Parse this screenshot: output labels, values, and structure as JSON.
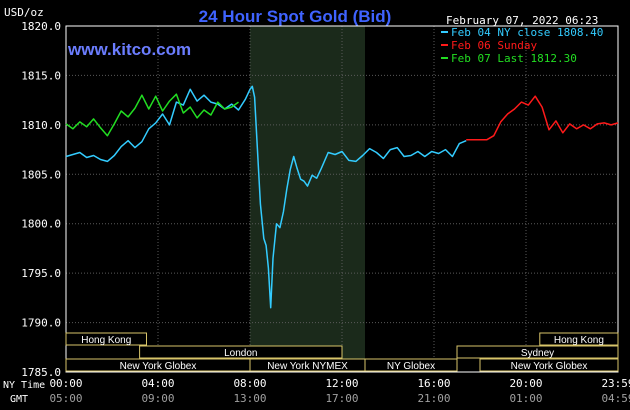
{
  "chart_data": {
    "type": "line",
    "title": "24 Hour Spot Gold (Bid)",
    "ylabel": "USD/oz",
    "website": "www.kitco.com",
    "date_label": "February 07, 2022 06:23",
    "ylim": [
      1785.0,
      1820.0
    ],
    "y_ticks": [
      "1820.0",
      "1815.0",
      "1810.0",
      "1805.0",
      "1800.0",
      "1795.0",
      "1790.0",
      "1785.0"
    ],
    "y_tick_values": [
      1820,
      1815,
      1810,
      1805,
      1800,
      1795,
      1790,
      1785
    ],
    "x_range_hours": [
      0,
      24
    ],
    "x_ticks_ny": [
      "00:00",
      "04:00",
      "08:00",
      "12:00",
      "16:00",
      "20:00",
      "23:59"
    ],
    "x_ticks_gmt": [
      "05:00",
      "09:00",
      "13:00",
      "17:00",
      "21:00",
      "01:00",
      "04:59"
    ],
    "x_tick_hours": [
      0,
      4,
      8,
      12,
      16,
      20,
      24
    ],
    "x_row_label_ny": "NY Time",
    "x_row_label_gmt": "GMT",
    "shaded_period_hours": [
      8.0,
      13.0
    ],
    "grid": true,
    "legend_placement": "top-right",
    "series": [
      {
        "name": "Feb 04 NY close 1808.40",
        "color": "#33ccff",
        "x": [
          0,
          0.3,
          0.6,
          0.9,
          1.2,
          1.5,
          1.8,
          2.1,
          2.4,
          2.7,
          3.0,
          3.3,
          3.6,
          3.9,
          4.2,
          4.5,
          4.8,
          5.1,
          5.4,
          5.7,
          6.0,
          6.3,
          6.6,
          6.9,
          7.2,
          7.5,
          7.8,
          8.0,
          8.1,
          8.2,
          8.3,
          8.45,
          8.6,
          8.7,
          8.8,
          8.9,
          9.0,
          9.15,
          9.3,
          9.45,
          9.6,
          9.75,
          9.9,
          10.05,
          10.2,
          10.35,
          10.5,
          10.7,
          10.9,
          11.1,
          11.4,
          11.7,
          12.0,
          12.3,
          12.6,
          12.9,
          13.2,
          13.5,
          13.8,
          14.1,
          14.4,
          14.7,
          15.0,
          15.3,
          15.6,
          15.9,
          16.2,
          16.5,
          16.8,
          17.1,
          17.4
        ],
        "y": [
          1806.8,
          1807.0,
          1807.2,
          1806.7,
          1806.9,
          1806.5,
          1806.3,
          1806.9,
          1807.8,
          1808.4,
          1807.7,
          1808.3,
          1809.6,
          1810.2,
          1811.1,
          1810.0,
          1812.3,
          1812.0,
          1813.6,
          1812.4,
          1813.0,
          1812.3,
          1812.1,
          1811.6,
          1812.1,
          1811.5,
          1812.6,
          1813.6,
          1813.9,
          1812.8,
          1808.5,
          1802.0,
          1798.5,
          1797.8,
          1795.5,
          1791.5,
          1796.5,
          1800.0,
          1799.6,
          1801.2,
          1803.5,
          1805.5,
          1806.8,
          1805.6,
          1804.5,
          1804.3,
          1803.8,
          1804.9,
          1804.6,
          1805.6,
          1807.2,
          1807.0,
          1807.3,
          1806.4,
          1806.3,
          1806.9,
          1807.6,
          1807.2,
          1806.6,
          1807.5,
          1807.7,
          1806.8,
          1806.9,
          1807.3,
          1806.8,
          1807.3,
          1807.1,
          1807.5,
          1806.8,
          1808.1,
          1808.4
        ]
      },
      {
        "name": "Feb 06 Sunday",
        "color": "#ff1a1a",
        "x": [
          17.4,
          17.7,
          18.0,
          18.3,
          18.6,
          18.9,
          19.2,
          19.5,
          19.8,
          20.1,
          20.4,
          20.7,
          21.0,
          21.3,
          21.6,
          21.9,
          22.2,
          22.5,
          22.8,
          23.1,
          23.4,
          23.7,
          24.0
        ],
        "y": [
          1808.5,
          1808.5,
          1808.5,
          1808.5,
          1808.9,
          1810.3,
          1811.1,
          1811.6,
          1812.3,
          1812.0,
          1812.9,
          1811.8,
          1809.5,
          1810.4,
          1809.2,
          1810.1,
          1809.6,
          1810.0,
          1809.6,
          1810.1,
          1810.2,
          1810.0,
          1810.2
        ]
      },
      {
        "name": "Feb 07 Last 1812.30",
        "color": "#22dd22",
        "x": [
          0,
          0.3,
          0.6,
          0.9,
          1.2,
          1.5,
          1.8,
          2.1,
          2.4,
          2.7,
          3.0,
          3.3,
          3.6,
          3.9,
          4.2,
          4.5,
          4.8,
          5.1,
          5.4,
          5.7,
          6.0,
          6.3,
          6.6,
          6.9,
          7.2,
          7.5
        ],
        "y": [
          1810.1,
          1809.6,
          1810.3,
          1809.8,
          1810.6,
          1809.7,
          1808.9,
          1810.1,
          1811.4,
          1810.8,
          1811.7,
          1813.0,
          1811.6,
          1812.9,
          1811.4,
          1812.4,
          1813.1,
          1811.2,
          1811.8,
          1810.7,
          1811.5,
          1811.0,
          1812.3,
          1811.6,
          1811.8,
          1812.3
        ]
      }
    ],
    "sessions": [
      {
        "label": "Hong Kong",
        "start": 0,
        "end": 3.5,
        "row": 0
      },
      {
        "label": "Hong Kong",
        "start": 20.6,
        "end": 24,
        "row": 0
      },
      {
        "label": "London",
        "start": 3.2,
        "end": 12.0,
        "row": 1
      },
      {
        "label": "Sydney",
        "start": 17.0,
        "end": 24,
        "row": 1
      },
      {
        "label": "New York Globex",
        "start": 0,
        "end": 8.0,
        "row": 2
      },
      {
        "label": "New York NYMEX",
        "start": 8.0,
        "end": 13.0,
        "row": 2
      },
      {
        "label": "NY Globex",
        "start": 13.0,
        "end": 17.0,
        "row": 2
      },
      {
        "label": "New York Globex",
        "start": 18.0,
        "end": 24,
        "row": 2
      }
    ]
  },
  "colors": {
    "background": "#000000",
    "plot_border": "#ffffff",
    "grid": "#5a5a5a",
    "shade": "#1b2a1b",
    "title": "#3f63ff",
    "website": "#6b7dff",
    "text": "#ffffff",
    "session_border": "#d8c56a",
    "session_text": "#ffffff",
    "gmt_text": "#a0a0a0"
  }
}
